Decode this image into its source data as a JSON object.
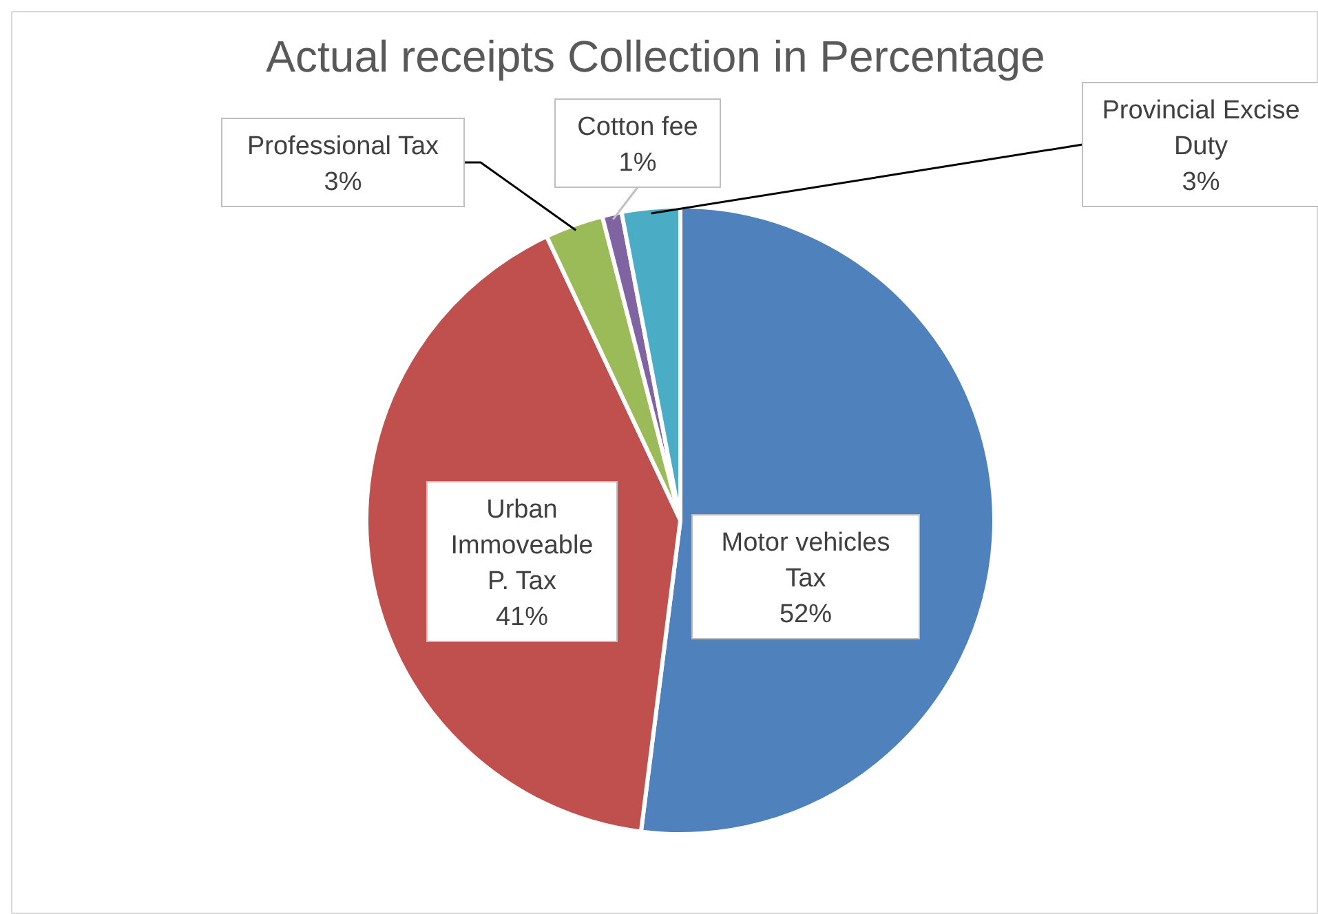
{
  "chart_data": {
    "type": "pie",
    "title": "Actual receipts Collection in Percentage",
    "categories": [
      "Motor vehicles Tax",
      "Urban Immoveable P. Tax",
      "Professional Tax",
      "Cotton fee",
      "Provincial Excise Duty"
    ],
    "values": [
      52,
      41,
      3,
      1,
      3
    ],
    "value_labels": [
      "52%",
      "41%",
      "3%",
      "1%",
      "3%"
    ],
    "colors": [
      "#4f81bd",
      "#c0504d",
      "#9bbb59",
      "#8064a2",
      "#4bacc6"
    ]
  }
}
